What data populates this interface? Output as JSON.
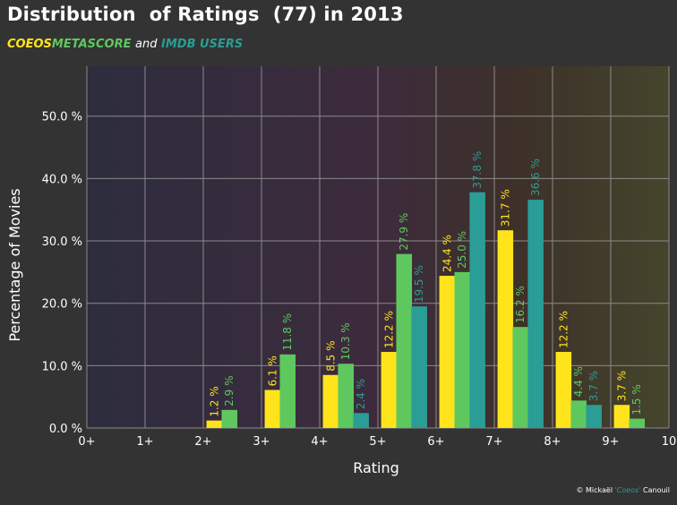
{
  "chart_data": {
    "type": "bar",
    "title": "Distribution  of Ratings  (77) in 2013",
    "legend": {
      "placement": "top-left",
      "and_text": "and",
      "entries": [
        {
          "name": "COEOS",
          "color": "#ffe41c"
        },
        {
          "name": "METASCORE",
          "color": "#5ec85e"
        },
        {
          "name": "IMDB USERS",
          "color": "#2a9d96"
        }
      ]
    },
    "xlabel": "Rating",
    "ylabel": "Percentage  of Movies",
    "xlim": [
      0,
      10
    ],
    "ylim": [
      0,
      58
    ],
    "grid": true,
    "x_ticks": [
      "0+",
      "1+",
      "2+",
      "3+",
      "4+",
      "5+",
      "6+",
      "7+",
      "8+",
      "9+",
      "10"
    ],
    "y_ticks": [
      {
        "value": 0,
        "label": "0.0 %"
      },
      {
        "value": 10,
        "label": "10.0 %"
      },
      {
        "value": 20,
        "label": "20.0 %"
      },
      {
        "value": 30,
        "label": "30.0 %"
      },
      {
        "value": 40,
        "label": "40.0 %"
      },
      {
        "value": 50,
        "label": "50.0 %"
      }
    ],
    "categories": [
      "0+",
      "1+",
      "2+",
      "3+",
      "4+",
      "5+",
      "6+",
      "7+",
      "8+",
      "9+"
    ],
    "series": [
      {
        "name": "COEOS",
        "color": "#ffe41c",
        "values": [
          null,
          null,
          1.2,
          6.1,
          8.5,
          12.2,
          24.4,
          31.7,
          12.2,
          3.7
        ],
        "labels": [
          null,
          null,
          "1.2 %",
          "6.1 %",
          "8.5 %",
          "12.2 %",
          "24.4 %",
          "31.7 %",
          "12.2 %",
          "3.7 %"
        ]
      },
      {
        "name": "METASCORE",
        "color": "#5ec85e",
        "values": [
          null,
          null,
          2.9,
          11.8,
          10.3,
          27.9,
          25.0,
          16.2,
          4.4,
          1.5
        ],
        "labels": [
          null,
          null,
          "2.9 %",
          "11.8 %",
          "10.3 %",
          "27.9 %",
          "25.0 %",
          "16.2 %",
          "4.4 %",
          "1.5 %"
        ]
      },
      {
        "name": "IMDB USERS",
        "color": "#2a9d96",
        "values": [
          null,
          null,
          null,
          null,
          2.4,
          19.5,
          37.8,
          36.6,
          3.7,
          null
        ],
        "labels": [
          null,
          null,
          null,
          null,
          "2.4 %",
          "19.5 %",
          "37.8 %",
          "36.6 %",
          "3.7 %",
          null
        ]
      }
    ]
  },
  "credit": {
    "prefix": "© Mickaël ",
    "nickname": "'Coeos'",
    "suffix": " Canouil"
  }
}
